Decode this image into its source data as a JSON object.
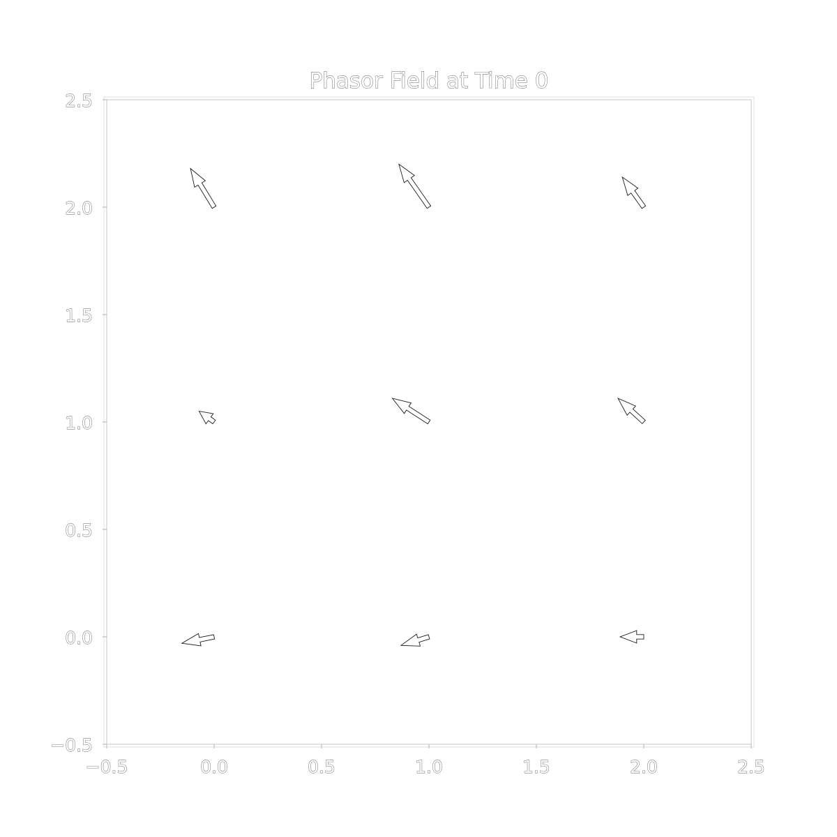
{
  "chart_data": {
    "type": "quiver",
    "title": "Phasor Field at Time 0",
    "xlabel": "",
    "ylabel": "",
    "xlim": [
      -0.5,
      2.5
    ],
    "ylim": [
      -0.5,
      2.5
    ],
    "x_ticks": [
      "−0.5",
      "0.0",
      "0.5",
      "1.0",
      "1.5",
      "2.0",
      "2.5"
    ],
    "y_ticks": [
      "−0.5",
      "0.0",
      "0.5",
      "1.0",
      "1.5",
      "2.0",
      "2.5"
    ],
    "x_tick_values": [
      -0.5,
      0.0,
      0.5,
      1.0,
      1.5,
      2.0,
      2.5
    ],
    "y_tick_values": [
      -0.5,
      0.0,
      0.5,
      1.0,
      1.5,
      2.0,
      2.5
    ],
    "grid": false,
    "vectors": [
      {
        "x": 0,
        "y": 0,
        "u": -0.15,
        "v": -0.03
      },
      {
        "x": 1,
        "y": 0,
        "u": -0.13,
        "v": -0.04
      },
      {
        "x": 2,
        "y": 0,
        "u": -0.11,
        "v": 0.0
      },
      {
        "x": 0,
        "y": 1,
        "u": -0.07,
        "v": 0.05
      },
      {
        "x": 1,
        "y": 1,
        "u": -0.17,
        "v": 0.11
      },
      {
        "x": 2,
        "y": 1,
        "u": -0.12,
        "v": 0.11
      },
      {
        "x": 0,
        "y": 2,
        "u": -0.11,
        "v": 0.18
      },
      {
        "x": 1,
        "y": 2,
        "u": -0.14,
        "v": 0.2
      },
      {
        "x": 2,
        "y": 2,
        "u": -0.1,
        "v": 0.14
      }
    ]
  }
}
